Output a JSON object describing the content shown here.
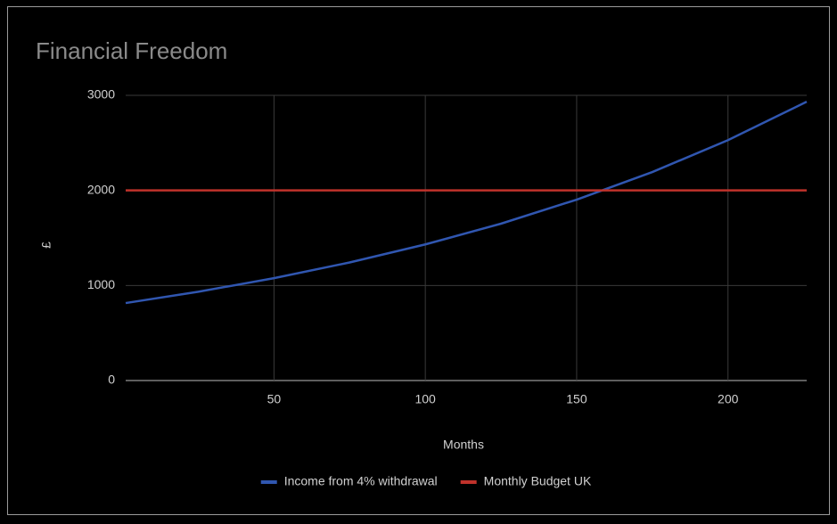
{
  "chart_data": {
    "type": "line",
    "title": "Financial Freedom",
    "x_label": "Months",
    "y_label": "£",
    "x": [
      1,
      25,
      50,
      75,
      100,
      125,
      150,
      175,
      200,
      226
    ],
    "series": [
      {
        "name": "Income from 4% withdrawal",
        "color": "#3056b0",
        "values": [
          815,
          934,
          1077,
          1242,
          1432,
          1650,
          1903,
          2193,
          2529,
          2933
        ]
      },
      {
        "name": "Monthly Budget UK",
        "color": "#c0322b",
        "values": [
          2000,
          2000,
          2000,
          2000,
          2000,
          2000,
          2000,
          2000,
          2000,
          2000
        ]
      }
    ],
    "xlim": [
      1,
      226
    ],
    "ylim": [
      0,
      3000
    ],
    "xticks": [
      50,
      100,
      150,
      200
    ],
    "yticks": [
      0,
      1000,
      2000,
      3000
    ],
    "grid": true,
    "legend": "bottom"
  }
}
